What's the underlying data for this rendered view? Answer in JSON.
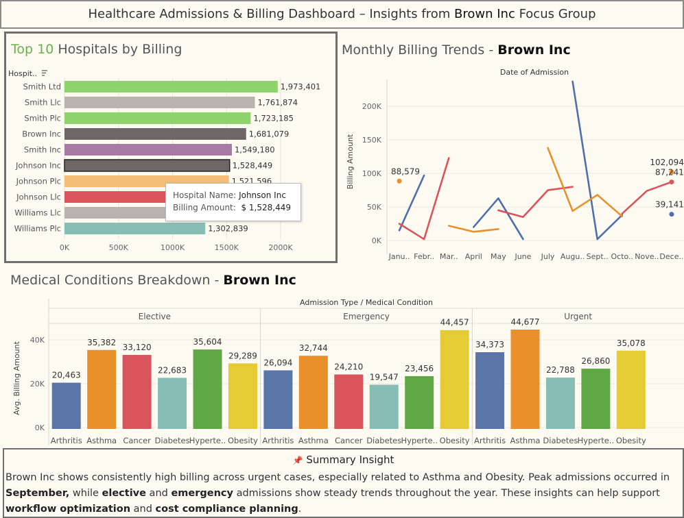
{
  "header": {
    "title_prefix": "Healthcare Admissions & Billing Dashboard – Insights from ",
    "title_brand": "Brown Inc",
    "title_suffix": " Focus Group"
  },
  "top10": {
    "title_highlight": "Top 10",
    "title_rest": " Hospitals by Billing",
    "field_label": "Hospit..",
    "sort_icon": "sort-icon",
    "tooltip": {
      "name_label": "Hospital Name:",
      "name_value": "Johnson Inc",
      "amount_label": "Billing Amount:",
      "amount_value": "$ 1,528,449"
    }
  },
  "monthly": {
    "title_prefix": "Monthly Billing Trends - ",
    "title_brand": "Brown Inc"
  },
  "conditions": {
    "title_prefix": "Medical Conditions Breakdown - ",
    "title_brand": "Brown Inc"
  },
  "summary": {
    "icon": "pushpin-icon",
    "pin": "📌",
    "title": "Summary Insight",
    "s1": "Brown Inc shows consistently high billing across urgent cases, especially related to Asthma and Obesity. Peak admissions occurred in ",
    "b1": "September,",
    "s2": " while ",
    "b2": "elective",
    "s3": " and ",
    "b3": "emergency",
    "s4": " admissions show steady trends throughout the year. These insights can help support ",
    "b4": "workflow optimization",
    "s5": " and ",
    "b5": "cost compliance planning",
    "s6": "."
  },
  "chart_data": [
    {
      "type": "bar",
      "orientation": "horizontal",
      "categories": [
        "Smith Ltd",
        "Smith Llc",
        "Smith Plc",
        "Brown Inc",
        "Smith Inc",
        "Johnson Inc",
        "Johnson Plc",
        "Johnson Llc",
        "Williams Llc",
        "Williams Plc"
      ],
      "values": [
        1973401,
        1761874,
        1723185,
        1681079,
        1549180,
        1528449,
        1521596,
        1480000,
        1400000,
        1302839
      ],
      "value_labels": [
        "1,973,401",
        "1,761,874",
        "1,723,185",
        "1,681,079",
        "1,549,180",
        "1,528,449",
        "1,521,596",
        "",
        "",
        "1,302,839"
      ],
      "colors": [
        "#8fd36d",
        "#b9b2ad",
        "#8fd36d",
        "#6f6767",
        "#a77ba6",
        "#6f6767",
        "#f5be78",
        "#d9545b",
        "#b9b2ad",
        "#86bdb4"
      ],
      "highlight_index": 5,
      "xlim": [
        0,
        2000000
      ],
      "xticks": [
        0,
        500000,
        1000000,
        1500000,
        2000000
      ],
      "xtick_labels": [
        "0K",
        "500K",
        "1000K",
        "1500K",
        "2000K"
      ]
    },
    {
      "type": "line",
      "title": "Date of Admission",
      "ylabel": "Billing Amount",
      "categories": [
        "Janu..",
        "Febr..",
        "Mar..",
        "April",
        "May",
        "June",
        "July",
        "Augu..",
        "Sept..",
        "Octo..",
        "Nove..",
        "Dece.."
      ],
      "ylim": [
        0,
        240000
      ],
      "yticks": [
        0,
        50000,
        100000,
        150000,
        200000
      ],
      "ytick_labels": [
        "0K",
        "50K",
        "100K",
        "150K",
        "200K"
      ],
      "series": [
        {
          "color": "#4e6fae",
          "segments": [
            [
              [
                0,
                15000
              ],
              [
                1,
                97000
              ]
            ],
            [
              [
                3,
                20000
              ],
              [
                4,
                63000
              ],
              [
                5,
                2000
              ]
            ],
            [
              [
                7,
                237000
              ],
              [
                8,
                2000
              ],
              [
                9,
                38000
              ]
            ]
          ]
        },
        {
          "color": "#d9545b",
          "segments": [
            [
              [
                0,
                25000
              ],
              [
                1,
                2000
              ],
              [
                2,
                123000
              ]
            ],
            [
              [
                4,
                45000
              ],
              [
                5,
                35000
              ],
              [
                6,
                75000
              ],
              [
                7,
                80000
              ]
            ],
            [
              [
                9,
                40000
              ],
              [
                10,
                74000
              ],
              [
                11,
                87241
              ]
            ]
          ]
        },
        {
          "color": "#e8902a",
          "segments": [
            [
              [
                2,
                22000
              ],
              [
                3,
                13000
              ],
              [
                4,
                17000
              ]
            ],
            [
              [
                6,
                138000
              ],
              [
                7,
                44000
              ],
              [
                8,
                68000
              ],
              [
                9,
                36000
              ]
            ]
          ]
        }
      ],
      "points": [
        {
          "x": 0,
          "y": 88579,
          "color": "#e8902a",
          "label": "88,579"
        },
        {
          "x": 11,
          "y": 102094,
          "color": "#e8902a",
          "label": "102,094"
        },
        {
          "x": 11,
          "y": 87241,
          "color": "#d9545b",
          "label": "87,241"
        },
        {
          "x": 11,
          "y": 39141,
          "color": "#4e6fae",
          "label": "39,141"
        }
      ]
    },
    {
      "type": "bar",
      "title": "Admission Type / Medical Condition",
      "ylabel": "Avg. Billing Amount",
      "ylim": [
        0,
        50000
      ],
      "yticks": [
        0,
        20000,
        40000
      ],
      "ytick_labels": [
        "0K",
        "20K",
        "40K"
      ],
      "groups": [
        {
          "name": "Elective",
          "categories": [
            "Arthritis",
            "Asthma",
            "Cancer",
            "Diabetes",
            "Hyperte..",
            "Obesity"
          ],
          "values": [
            20463,
            35382,
            33120,
            22683,
            35604,
            29289
          ],
          "labels": [
            "20,463",
            "35,382",
            "33,120",
            "22,683",
            "35,604",
            "29,289"
          ]
        },
        {
          "name": "Emergency",
          "categories": [
            "Arthritis",
            "Asthma",
            "Cancer",
            "Diabetes",
            "Hyperte..",
            "Obesity"
          ],
          "values": [
            26094,
            32744,
            24210,
            19547,
            23456,
            44457
          ],
          "labels": [
            "26,094",
            "32,744",
            "24,210",
            "19,547",
            "23,456",
            "44,457"
          ]
        },
        {
          "name": "Urgent",
          "categories": [
            "Arthritis",
            "Asthma",
            "Diabetes",
            "Hyperte..",
            "Obesity"
          ],
          "values": [
            34373,
            44677,
            22788,
            26860,
            35078
          ],
          "labels": [
            "34,373",
            "44,677",
            "22,788",
            "26,860",
            "35,078"
          ]
        }
      ],
      "color_map": {
        "Arthritis": "#5a76a9",
        "Asthma": "#e8902a",
        "Cancer": "#d9545b",
        "Diabetes": "#86bdb4",
        "Hyperte..": "#5fa845",
        "Obesity": "#e5cc35"
      }
    }
  ]
}
